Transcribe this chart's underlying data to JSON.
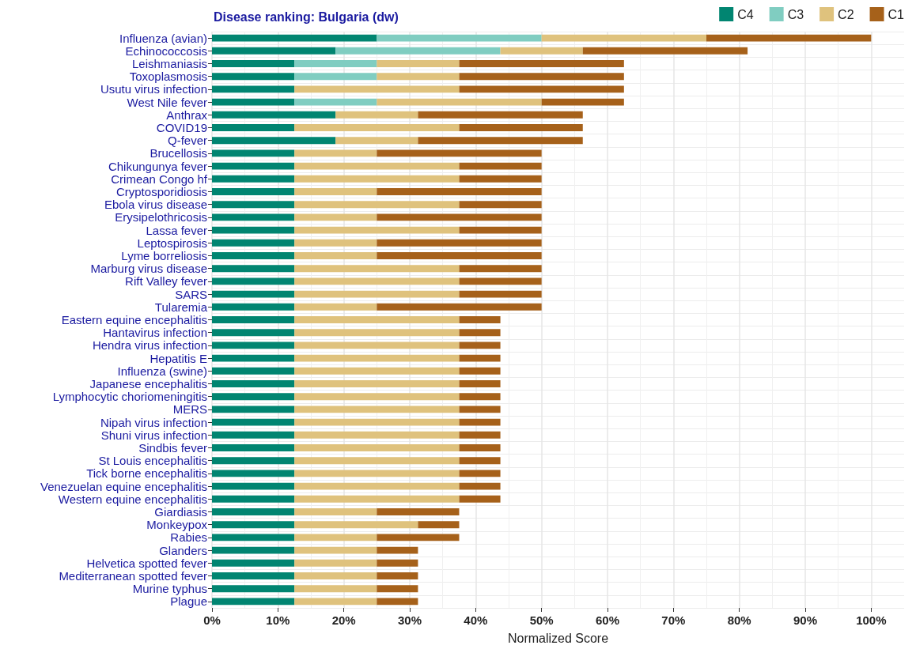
{
  "chart_data": {
    "type": "bar",
    "orientation": "horizontal",
    "stacked": true,
    "title": "Disease ranking: Bulgaria (dw)",
    "xlabel": "Normalized Score",
    "legend": "top right",
    "grid": true,
    "categories": [
      "Influenza (avian)",
      "Echinococcosis",
      "Leishmaniasis",
      "Toxoplasmosis",
      "Usutu virus infection",
      "West Nile fever",
      "Anthrax",
      "COVID19",
      "Q-fever",
      "Brucellosis",
      "Chikungunya fever",
      "Crimean Congo hf",
      "Cryptosporidiosis",
      "Ebola virus disease",
      "Erysipelothricosis",
      "Lassa fever",
      "Leptospirosis",
      "Lyme borreliosis",
      "Marburg virus disease",
      "Rift Valley fever",
      "SARS",
      "Tularemia",
      "Eastern equine encephalitis",
      "Hantavirus infection",
      "Hendra virus infection",
      "Hepatitis E",
      "Influenza (swine)",
      "Japanese encephalitis",
      "Lymphocytic choriomeningitis",
      "MERS",
      "Nipah virus infection",
      "Shuni virus infection",
      "Sindbis fever",
      "St Louis encephalitis",
      "Tick borne encephalitis",
      "Venezuelan equine encephalitis",
      "Western equine encephalitis",
      "Giardiasis",
      "Monkeypox",
      "Rabies",
      "Glanders",
      "Helvetica spotted fever",
      "Mediterranean spotted fever",
      "Murine typhus",
      "Plague"
    ],
    "series": [
      {
        "name": "C4",
        "color": "#018571",
        "values": [
          25,
          18.75,
          12.5,
          12.5,
          12.5,
          12.5,
          18.75,
          12.5,
          18.75,
          12.5,
          12.5,
          12.5,
          12.5,
          12.5,
          12.5,
          12.5,
          12.5,
          12.5,
          12.5,
          12.5,
          12.5,
          12.5,
          12.5,
          12.5,
          12.5,
          12.5,
          12.5,
          12.5,
          12.5,
          12.5,
          12.5,
          12.5,
          12.5,
          12.5,
          12.5,
          12.5,
          12.5,
          12.5,
          12.5,
          12.5,
          12.5,
          12.5,
          12.5,
          12.5,
          12.5
        ]
      },
      {
        "name": "C3",
        "color": "#80cdc1",
        "values": [
          25,
          25,
          12.5,
          12.5,
          0,
          12.5,
          0,
          0,
          0,
          0,
          0,
          0,
          0,
          0,
          0,
          0,
          0,
          0,
          0,
          0,
          0,
          0,
          0,
          0,
          0,
          0,
          0,
          0,
          0,
          0,
          0,
          0,
          0,
          0,
          0,
          0,
          0,
          0,
          0,
          0,
          0,
          0,
          0,
          0,
          0
        ]
      },
      {
        "name": "C2",
        "color": "#dfc27d",
        "values": [
          25,
          12.5,
          12.5,
          12.5,
          25,
          25,
          12.5,
          25,
          12.5,
          12.5,
          25,
          25,
          12.5,
          25,
          12.5,
          25,
          12.5,
          12.5,
          25,
          25,
          25,
          12.5,
          25,
          25,
          25,
          25,
          25,
          25,
          25,
          25,
          25,
          25,
          25,
          25,
          25,
          25,
          25,
          12.5,
          18.75,
          12.5,
          12.5,
          12.5,
          12.5,
          12.5,
          12.5
        ]
      },
      {
        "name": "C1",
        "color": "#a6611a",
        "values": [
          25,
          25,
          25,
          25,
          25,
          12.5,
          25,
          18.75,
          25,
          25,
          12.5,
          12.5,
          25,
          12.5,
          25,
          12.5,
          25,
          25,
          12.5,
          12.5,
          12.5,
          25,
          6.25,
          6.25,
          6.25,
          6.25,
          6.25,
          6.25,
          6.25,
          6.25,
          6.25,
          6.25,
          6.25,
          6.25,
          6.25,
          6.25,
          6.25,
          12.5,
          6.25,
          12.5,
          6.25,
          6.25,
          6.25,
          6.25,
          6.25
        ]
      }
    ],
    "xlim": [
      0,
      105
    ],
    "xticks": [
      {
        "value": 0,
        "label": "0%"
      },
      {
        "value": 10,
        "label": "10%"
      },
      {
        "value": 20,
        "label": "20%"
      },
      {
        "value": 30,
        "label": "30%"
      },
      {
        "value": 40,
        "label": "40%"
      },
      {
        "value": 50,
        "label": "50%"
      },
      {
        "value": 60,
        "label": "60%"
      },
      {
        "value": 70,
        "label": "70%"
      },
      {
        "value": 80,
        "label": "80%"
      },
      {
        "value": 90,
        "label": "90%"
      },
      {
        "value": 100,
        "label": "100%"
      }
    ]
  }
}
